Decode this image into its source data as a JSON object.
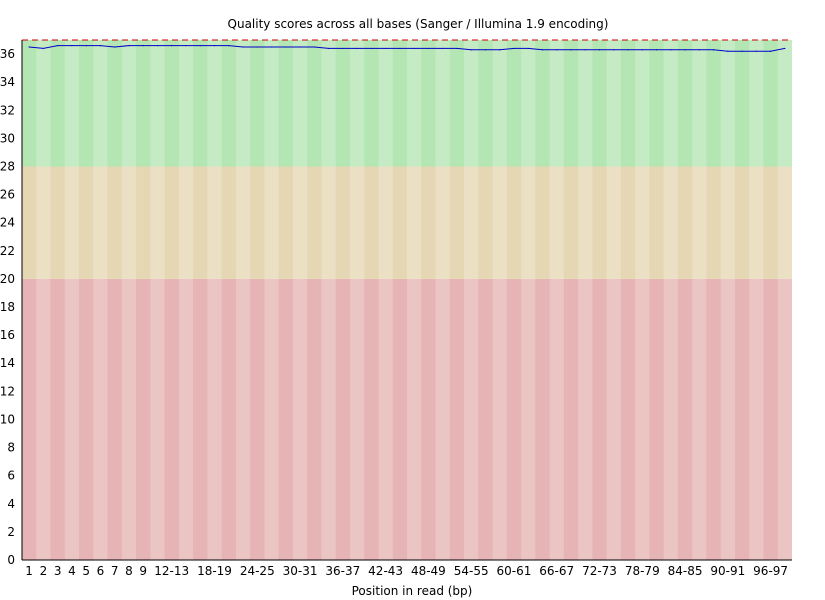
{
  "chart_data": {
    "type": "line",
    "title": "Quality scores across all bases (Sanger / Illumina 1.9 encoding)",
    "xlabel": "Position in read (bp)",
    "ylabel": "",
    "ylim": [
      0,
      37
    ],
    "y_ticks": [
      "0",
      "2",
      "4",
      "6",
      "8",
      "10",
      "12",
      "14",
      "16",
      "18",
      "20",
      "22",
      "24",
      "26",
      "28",
      "30",
      "32",
      "34",
      "36"
    ],
    "categories": [
      "1",
      "2",
      "3",
      "4",
      "5",
      "6",
      "7",
      "8",
      "9",
      "10-11",
      "12-13",
      "14-15",
      "16-17",
      "18-19",
      "20-21",
      "22-23",
      "24-25",
      "26-27",
      "28-29",
      "30-31",
      "32-33",
      "34-35",
      "36-37",
      "38-39",
      "40-41",
      "42-43",
      "44-45",
      "46-47",
      "48-49",
      "50-51",
      "52-53",
      "54-55",
      "56-57",
      "58-59",
      "60-61",
      "62-63",
      "64-65",
      "66-67",
      "68-69",
      "70-71",
      "72-73",
      "74-75",
      "76-77",
      "78-79",
      "80-81",
      "82-83",
      "84-85",
      "86-87",
      "88-89",
      "90-91",
      "92-93",
      "94-95",
      "96-97",
      "98-99"
    ],
    "x_tick_labels": [
      "1",
      "2",
      "3",
      "4",
      "5",
      "6",
      "7",
      "8",
      "9",
      "12-13",
      "18-19",
      "24-25",
      "30-31",
      "36-37",
      "42-43",
      "48-49",
      "54-55",
      "60-61",
      "66-67",
      "72-73",
      "78-79",
      "84-85",
      "90-91",
      "96-97"
    ],
    "quality_bands": [
      {
        "range": [
          0,
          20
        ],
        "color": "#e6b4b4"
      },
      {
        "range": [
          20,
          28
        ],
        "color": "#e6d7b4"
      },
      {
        "range": [
          28,
          37
        ],
        "color": "#b4e6b4"
      }
    ],
    "series": [
      {
        "color": "#0000cc",
        "values": [
          36.5,
          36.4,
          36.6,
          36.6,
          36.6,
          36.6,
          36.5,
          36.6,
          36.6,
          36.6,
          36.6,
          36.6,
          36.6,
          36.6,
          36.6,
          36.5,
          36.5,
          36.5,
          36.5,
          36.5,
          36.5,
          36.4,
          36.4,
          36.4,
          36.4,
          36.4,
          36.4,
          36.4,
          36.4,
          36.4,
          36.4,
          36.3,
          36.3,
          36.3,
          36.4,
          36.4,
          36.3,
          36.3,
          36.3,
          36.3,
          36.3,
          36.3,
          36.3,
          36.3,
          36.3,
          36.3,
          36.3,
          36.3,
          36.3,
          36.2,
          36.2,
          36.2,
          36.2,
          36.4
        ]
      }
    ],
    "reference_line": {
      "value": 37,
      "color": "#cc0000",
      "style": "dashed"
    },
    "grid": false,
    "legend": "none"
  }
}
